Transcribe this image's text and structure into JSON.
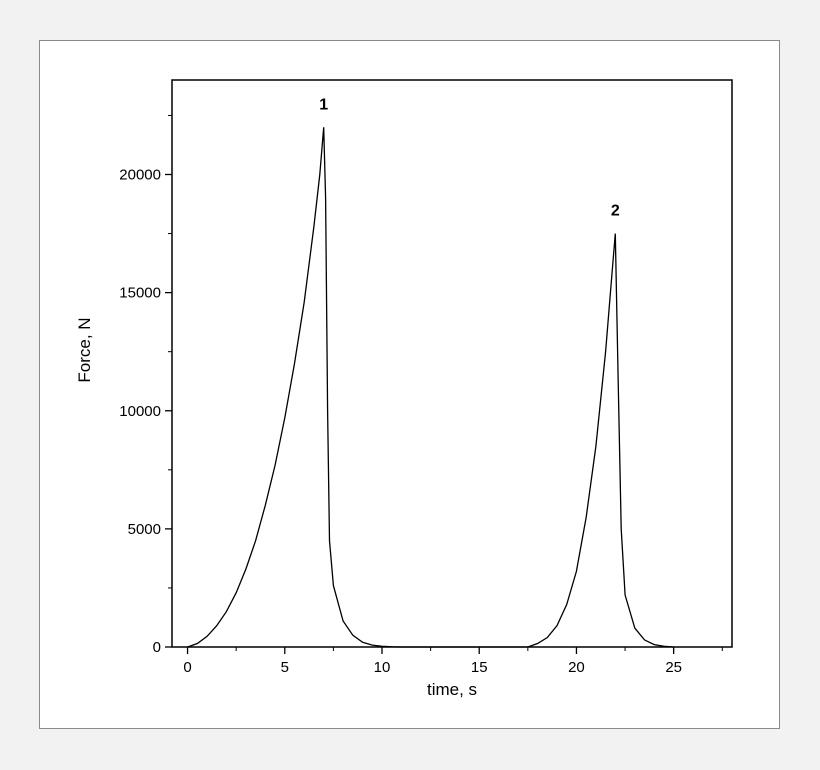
{
  "chart_data": {
    "type": "line",
    "title": "",
    "xlabel": "time, s",
    "ylabel": "Force, N",
    "xlim": [
      -0.8,
      28
    ],
    "ylim": [
      0,
      24000
    ],
    "xticks": [
      0,
      5,
      10,
      15,
      20,
      25
    ],
    "yticks": [
      0,
      5000,
      10000,
      15000,
      20000
    ],
    "x_minor_step": 2.5,
    "y_minor_step": 2500,
    "grid": false,
    "legend": "none",
    "line_color": "#000000",
    "series": [
      {
        "x": [
          0,
          0.5,
          1,
          1.5,
          2,
          2.5,
          3,
          3.5,
          4,
          4.5,
          5,
          5.5,
          6,
          6.5,
          6.8,
          7.0,
          7.1,
          7.2,
          7.3,
          7.5,
          8.0,
          8.5,
          9.0,
          9.5,
          10.0,
          10.5,
          11.0,
          17.5,
          18,
          18.5,
          19,
          19.5,
          20,
          20.5,
          21,
          21.5,
          21.8,
          22.0,
          22.15,
          22.3,
          22.5,
          23.0,
          23.5,
          24.0,
          24.5,
          25.0
        ],
        "y": [
          0,
          150,
          450,
          900,
          1500,
          2300,
          3300,
          4500,
          6000,
          7700,
          9700,
          12000,
          14600,
          17800,
          20000,
          22000,
          19000,
          10000,
          4500,
          2600,
          1100,
          500,
          200,
          80,
          30,
          10,
          0,
          0,
          150,
          400,
          900,
          1800,
          3200,
          5500,
          8500,
          12500,
          15500,
          17500,
          11000,
          5000,
          2200,
          800,
          300,
          100,
          30,
          0
        ]
      }
    ],
    "annotations": [
      {
        "text": "1",
        "x": 7.0,
        "y": 22000
      },
      {
        "text": "2",
        "x": 22.0,
        "y": 17500
      }
    ]
  }
}
